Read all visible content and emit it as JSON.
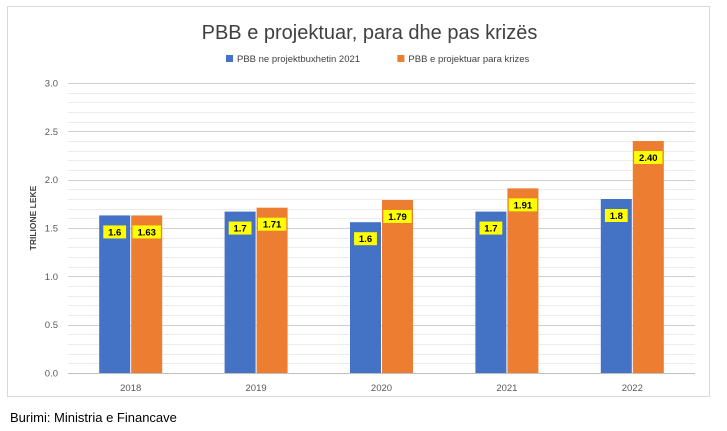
{
  "chart_data": {
    "type": "bar",
    "title": "PBB e projektuar, para dhe pas krizës",
    "xlabel": "",
    "ylabel": "TRILIONE LEKE",
    "categories": [
      "2018",
      "2019",
      "2020",
      "2021",
      "2022"
    ],
    "series": [
      {
        "name": "PBB ne projektbuxhetin 2021",
        "color": "#4472c4",
        "values": [
          1.63,
          1.67,
          1.56,
          1.67,
          1.8
        ],
        "labels": [
          "1.6",
          "1.7",
          "1.6",
          "1.7",
          "1.8"
        ]
      },
      {
        "name": "PBB e projektuar para krizes",
        "color": "#ed7d31",
        "values": [
          1.63,
          1.71,
          1.79,
          1.91,
          2.4
        ],
        "labels": [
          "1.63",
          "1.71",
          "1.79",
          "1.91",
          "2.40"
        ]
      }
    ],
    "ylim": [
      0,
      3.0
    ],
    "yticks": [
      "0.0",
      "0.5",
      "1.0",
      "1.5",
      "2.0",
      "2.5",
      "3.0"
    ],
    "grid": true,
    "legend": "top-center",
    "label_bg": "#ffff00"
  },
  "source": "Burimi: Ministria e Financave"
}
